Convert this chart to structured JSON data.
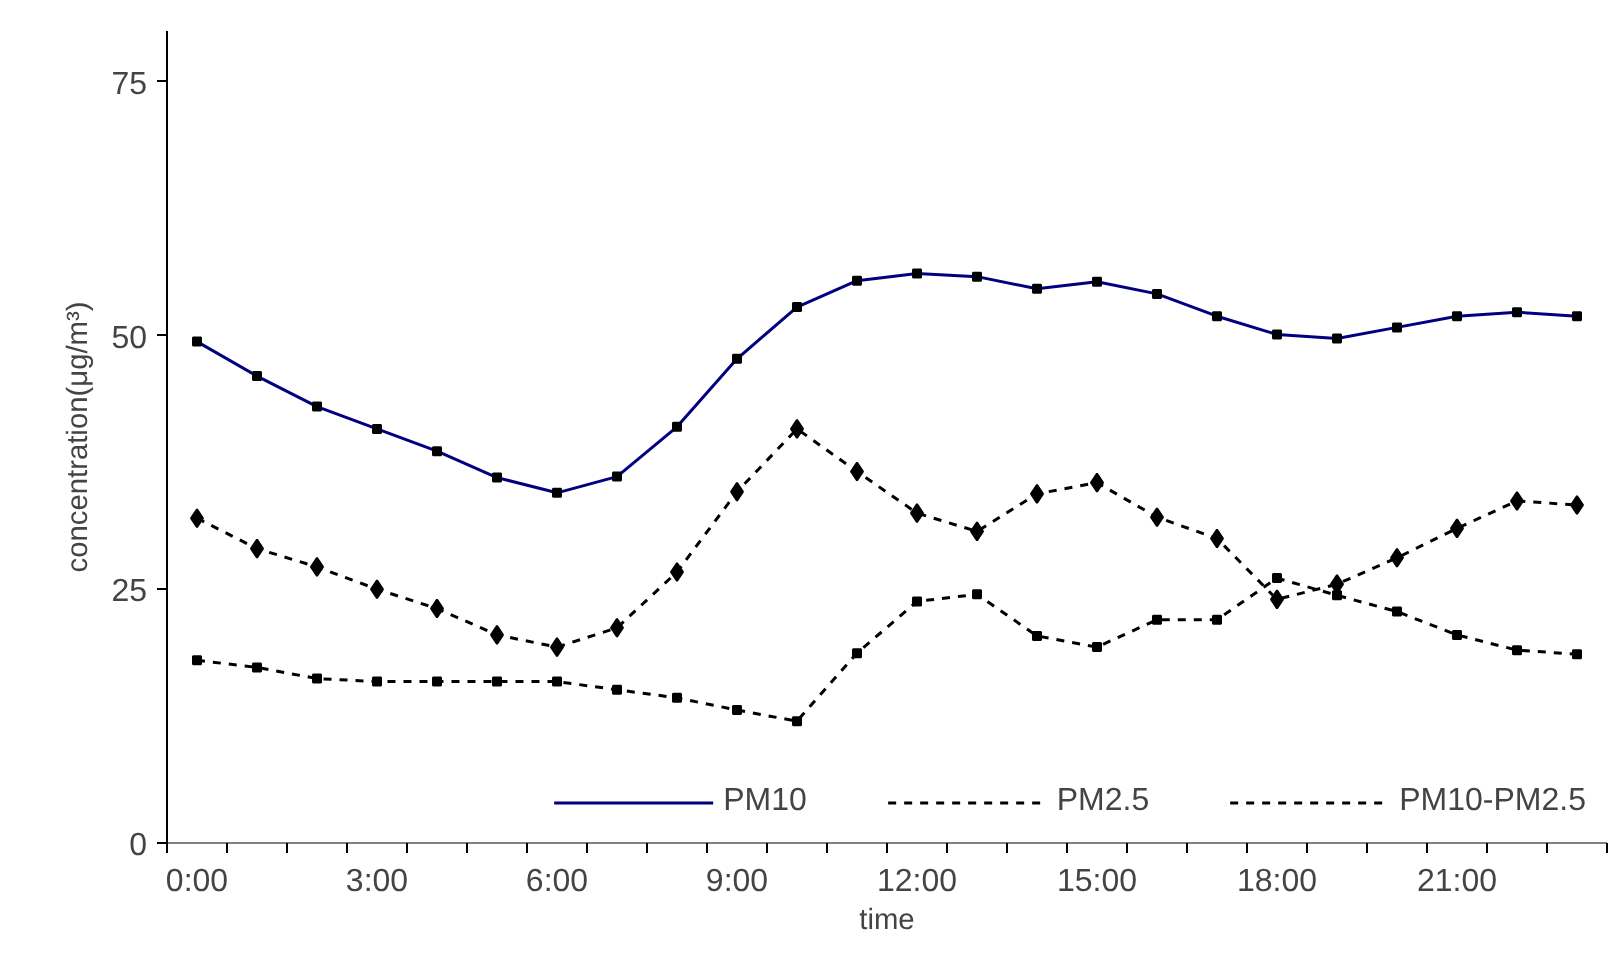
{
  "chart_data": {
    "type": "line",
    "xlabel": "time",
    "ylabel": "concentration(μg/m³)",
    "categories": [
      "0:00",
      null,
      null,
      "3:00",
      null,
      null,
      "6:00",
      null,
      null,
      "9:00",
      null,
      null,
      "12:00",
      null,
      null,
      "15:00",
      null,
      null,
      "18:00",
      null,
      null,
      "21:00",
      null,
      null
    ],
    "series": [
      {
        "name": "PM10",
        "color": "#000080",
        "line_style": "solid",
        "marker": "square",
        "values": [
          49.4,
          46,
          43,
          40.8,
          38.6,
          36,
          34.5,
          36.1,
          41,
          47.7,
          52.8,
          55.4,
          56.1,
          55.8,
          54.6,
          55.3,
          54.1,
          51.9,
          50.1,
          49.7,
          50.8,
          51.9,
          52.3,
          51.9
        ]
      },
      {
        "name": "PM2.5",
        "color": "#000000",
        "line_style": "dashed",
        "marker": "square",
        "values": [
          18,
          17.3,
          16.2,
          15.9,
          15.9,
          15.9,
          15.9,
          15.1,
          14.3,
          13.1,
          12,
          18.7,
          23.8,
          24.5,
          20.4,
          19.3,
          22,
          22,
          26.1,
          24.4,
          22.8,
          20.5,
          19,
          18.6
        ]
      },
      {
        "name": "PM10-PM2.5",
        "color": "#000000",
        "line_style": "dashed",
        "marker": "diamond",
        "values": [
          32,
          29,
          27.2,
          25,
          23.1,
          20.5,
          19.3,
          21.2,
          26.7,
          34.6,
          40.8,
          36.6,
          32.5,
          30.7,
          34.4,
          35.5,
          32.1,
          30,
          24,
          25.5,
          28.1,
          31,
          33.7,
          33.3
        ]
      }
    ],
    "ylim": [
      0,
      80
    ],
    "yticks": [
      0,
      25,
      50,
      75
    ],
    "grid": false,
    "legend": "bottom"
  }
}
